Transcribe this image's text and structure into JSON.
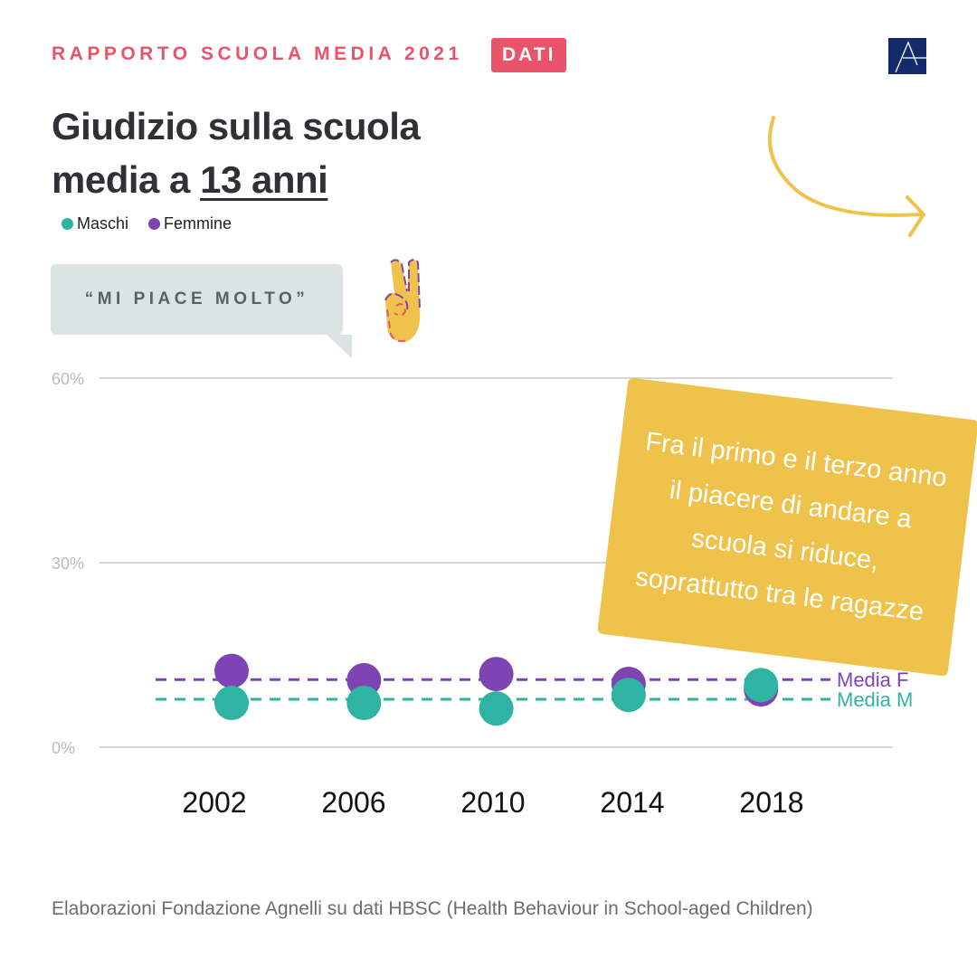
{
  "header": {
    "kicker": "RAPPORTO SCUOLA MEDIA 2021",
    "badge": "DATI",
    "logo": "A"
  },
  "title": {
    "line1": "Giudizio sulla scuola",
    "line2_prefix": "media a ",
    "line2_underlined": "13 anni"
  },
  "legend": [
    {
      "label": "Maschi",
      "color": "#2fb3a3"
    },
    {
      "label": "Femmine",
      "color": "#7f44b3"
    }
  ],
  "quote": "“MI PIACE MOLTO”",
  "note": "Fra il primo e il terzo anno il piacere di andare a scuola si riduce, soprattutto tra le ragazze",
  "source": "Elaborazioni Fondazione Agnelli su dati HBSC (Health Behaviour in School-aged Children)",
  "icons": {
    "hand": "peace-hand-icon",
    "arrow": "curved-arrow-icon"
  },
  "chart_data": {
    "type": "scatter",
    "categories": [
      "2002",
      "2006",
      "2010",
      "2014",
      "2018"
    ],
    "ylim": [
      0,
      60
    ],
    "yticks": [
      "0%",
      "30%",
      "60%"
    ],
    "ytick_values": [
      0,
      30,
      60
    ],
    "grid": true,
    "series": [
      {
        "name": "Maschi",
        "color": "#2fb3a3",
        "values": [
          7.2,
          7.2,
          6.3,
          8.5,
          10.1
        ],
        "mean": 7.8,
        "mean_label": "Media M"
      },
      {
        "name": "Femmine",
        "color": "#7f44b3",
        "values": [
          12.4,
          10.9,
          11.9,
          10.3,
          9.4
        ],
        "mean": 11.0,
        "mean_label": "Media F"
      }
    ]
  }
}
